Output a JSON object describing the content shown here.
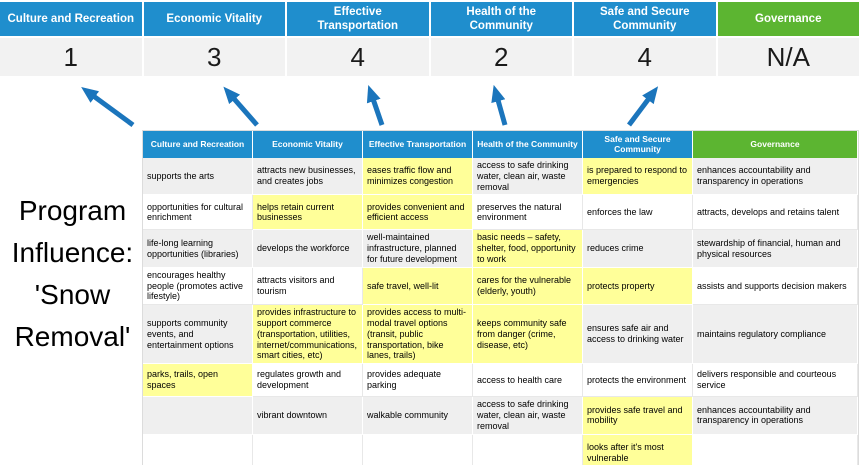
{
  "title": {
    "text": "Program Influence: 'Snow Removal'",
    "lines": [
      "Program",
      "Influence:",
      "'Snow",
      "Removal'"
    ]
  },
  "colors": {
    "header_blue": "#1F8ECD",
    "governance_green": "#5CB531",
    "highlight_yellow": "#FFFF99",
    "row_gray": "#EFEFEF",
    "score_gray": "#F2F2F2",
    "arrow_blue": "#1B75BC"
  },
  "pillars": [
    {
      "label": "Culture and Recreation",
      "score": "1",
      "type": "blue"
    },
    {
      "label": "Economic Vitality",
      "score": "3",
      "type": "blue"
    },
    {
      "label": "Effective Transportation",
      "score": "4",
      "type": "blue"
    },
    {
      "label": "Health of the Community",
      "score": "2",
      "type": "blue"
    },
    {
      "label": "Safe and Secure Community",
      "score": "4",
      "type": "blue"
    },
    {
      "label": "Governance",
      "score": "N/A",
      "type": "green"
    }
  ],
  "influence_table": {
    "headers": [
      {
        "label": "Culture and Recreation",
        "type": "blue"
      },
      {
        "label": "Economic Vitality",
        "type": "blue"
      },
      {
        "label": "Effective Transportation",
        "type": "blue"
      },
      {
        "label": "Health of the Community",
        "type": "blue"
      },
      {
        "label": "Safe and Secure Community",
        "type": "blue"
      },
      {
        "label": "Governance",
        "type": "green"
      }
    ],
    "rows": [
      {
        "cells": [
          {
            "text": "supports the arts",
            "highlighted": false
          },
          {
            "text": "attracts new businesses, and creates jobs",
            "highlighted": false
          },
          {
            "text": "eases traffic flow and minimizes congestion",
            "highlighted": true
          },
          {
            "text": "access to safe drinking water, clean air, waste removal",
            "highlighted": false
          },
          {
            "text": "is prepared to respond to emergencies",
            "highlighted": true
          },
          {
            "text": "enhances accountability and transparency in operations",
            "highlighted": false
          }
        ]
      },
      {
        "cells": [
          {
            "text": "opportunities for cultural enrichment",
            "highlighted": false
          },
          {
            "text": "helps retain current businesses",
            "highlighted": true
          },
          {
            "text": "provides convenient and efficient access",
            "highlighted": true
          },
          {
            "text": "preserves the natural environment",
            "highlighted": false
          },
          {
            "text": "enforces the law",
            "highlighted": false
          },
          {
            "text": "attracts, develops and retains talent",
            "highlighted": false
          }
        ]
      },
      {
        "cells": [
          {
            "text": "life-long learning opportunities (libraries)",
            "highlighted": false
          },
          {
            "text": "develops the workforce",
            "highlighted": false
          },
          {
            "text": "well-maintained infrastructure, planned for future development",
            "highlighted": false
          },
          {
            "text": "basic needs – safety, shelter, food, opportunity to work",
            "highlighted": true
          },
          {
            "text": "reduces crime",
            "highlighted": false
          },
          {
            "text": "stewardship of financial, human and physical resources",
            "highlighted": false
          }
        ]
      },
      {
        "cells": [
          {
            "text": "encourages healthy people (promotes active lifestyle)",
            "highlighted": false
          },
          {
            "text": "attracts visitors and tourism",
            "highlighted": false
          },
          {
            "text": "safe travel, well-lit",
            "highlighted": true
          },
          {
            "text": "cares for the vulnerable (elderly, youth)",
            "highlighted": true
          },
          {
            "text": "protects property",
            "highlighted": true
          },
          {
            "text": "assists and supports decision makers",
            "highlighted": false
          }
        ]
      },
      {
        "cells": [
          {
            "text": "supports community events, and entertainment options",
            "highlighted": false
          },
          {
            "text": "provides infrastructure to support commerce (transportation, utilities, internet/communications, smart cities, etc)",
            "highlighted": true
          },
          {
            "text": "provides access to multi-modal travel options (transit, public transportation, bike lanes, trails)",
            "highlighted": true
          },
          {
            "text": "keeps community safe from danger (crime, disease, etc)",
            "highlighted": true
          },
          {
            "text": "ensures safe air and access to drinking water",
            "highlighted": false
          },
          {
            "text": "maintains regulatory compliance",
            "highlighted": false
          }
        ]
      },
      {
        "cells": [
          {
            "text": "parks, trails, open spaces",
            "highlighted": true
          },
          {
            "text": "regulates growth and development",
            "highlighted": false
          },
          {
            "text": "provides adequate parking",
            "highlighted": false
          },
          {
            "text": "access to health care",
            "highlighted": false
          },
          {
            "text": "protects the environment",
            "highlighted": false
          },
          {
            "text": "delivers responsible and courteous service",
            "highlighted": false
          }
        ]
      },
      {
        "cells": [
          {
            "text": "",
            "highlighted": false
          },
          {
            "text": "vibrant downtown",
            "highlighted": false
          },
          {
            "text": "walkable community",
            "highlighted": false
          },
          {
            "text": "access to safe drinking water, clean air, waste removal",
            "highlighted": false
          },
          {
            "text": "provides safe travel and mobility",
            "highlighted": true
          },
          {
            "text": "enhances accountability and transparency in operations",
            "highlighted": false
          }
        ]
      },
      {
        "cells": [
          {
            "text": "",
            "highlighted": false
          },
          {
            "text": "",
            "highlighted": false
          },
          {
            "text": "",
            "highlighted": false
          },
          {
            "text": "",
            "highlighted": false
          },
          {
            "text": "looks after it's most vulnerable",
            "highlighted": true
          },
          {
            "text": "",
            "highlighted": false
          }
        ]
      }
    ]
  }
}
